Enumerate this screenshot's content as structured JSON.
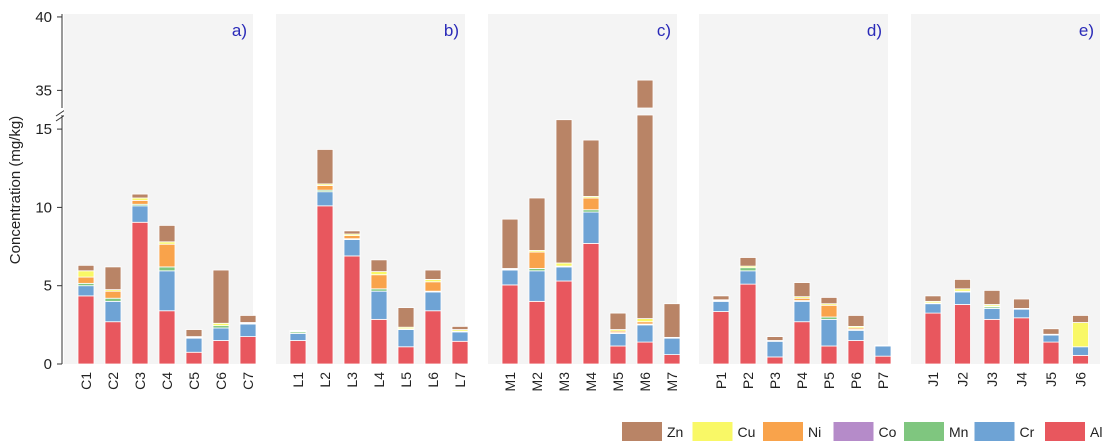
{
  "ylabel": "Concentration (mg/kg)",
  "legend": [
    {
      "name": "Zn",
      "color": "#b98466"
    },
    {
      "name": "Cu",
      "color": "#f9f866"
    },
    {
      "name": "Ni",
      "color": "#f9a34b"
    },
    {
      "name": "Co",
      "color": "#b58bc9"
    },
    {
      "name": "Mn",
      "color": "#7fc67f"
    },
    {
      "name": "Cr",
      "color": "#6ea3d5"
    },
    {
      "name": "Al",
      "color": "#e8575e"
    }
  ],
  "chart_data": [
    {
      "type": "bar",
      "stacked": true,
      "label": "a)",
      "yticks": [
        0,
        5,
        10,
        15,
        35,
        40
      ],
      "ylim_lower": [
        0,
        15.9
      ],
      "ylim_upper": [
        33.8,
        40.2
      ],
      "axis_break": true,
      "grid": false,
      "categories": [
        "C1",
        "C2",
        "C3",
        "C4",
        "C5",
        "C6",
        "C7"
      ],
      "series": [
        {
          "name": "Al",
          "values": [
            4.35,
            2.7,
            9.05,
            3.4,
            0.75,
            1.5,
            1.75
          ]
        },
        {
          "name": "Cr",
          "values": [
            0.65,
            1.3,
            1.05,
            2.55,
            0.9,
            0.8,
            0.8
          ]
        },
        {
          "name": "Mn",
          "values": [
            0.15,
            0.2,
            0.1,
            0.25,
            0.05,
            0.15,
            0.05
          ]
        },
        {
          "name": "Co",
          "values": [
            0,
            0,
            0,
            0,
            0,
            0,
            0
          ]
        },
        {
          "name": "Ni",
          "values": [
            0.4,
            0.45,
            0.25,
            1.45,
            0,
            0,
            0
          ]
        },
        {
          "name": "Cu",
          "values": [
            0.4,
            0.1,
            0.15,
            0.15,
            0.05,
            0.15,
            0.05
          ]
        },
        {
          "name": "Zn",
          "values": [
            0.35,
            1.45,
            0.25,
            1.05,
            0.45,
            3.4,
            0.45
          ]
        }
      ]
    },
    {
      "type": "bar",
      "stacked": true,
      "label": "b)",
      "categories": [
        "L1",
        "L2",
        "L3",
        "L4",
        "L5",
        "L6",
        "L7"
      ],
      "series": [
        {
          "name": "Al",
          "values": [
            1.5,
            10.1,
            6.9,
            2.85,
            1.1,
            3.4,
            1.45
          ]
        },
        {
          "name": "Cr",
          "values": [
            0.45,
            0.9,
            1.05,
            1.8,
            1.1,
            1.2,
            0.6
          ]
        },
        {
          "name": "Mn",
          "values": [
            0.1,
            0.1,
            0.05,
            0.15,
            0.05,
            0.05,
            0.05
          ]
        },
        {
          "name": "Co",
          "values": [
            0,
            0,
            0,
            0,
            0,
            0,
            0
          ]
        },
        {
          "name": "Ni",
          "values": [
            0,
            0.3,
            0.2,
            0.9,
            0,
            0.6,
            0
          ]
        },
        {
          "name": "Cu",
          "values": [
            0.05,
            0.1,
            0.1,
            0.2,
            0.1,
            0.15,
            0.1
          ]
        },
        {
          "name": "Zn",
          "values": [
            0.05,
            2.2,
            0.2,
            0.75,
            1.25,
            0.6,
            0.2
          ]
        }
      ]
    },
    {
      "type": "bar",
      "stacked": true,
      "label": "c)",
      "categories": [
        "M1",
        "M2",
        "M3",
        "M4",
        "M5",
        "M6",
        "M7"
      ],
      "series": [
        {
          "name": "Al",
          "values": [
            5.05,
            4.0,
            5.3,
            7.7,
            1.15,
            1.4,
            0.6
          ]
        },
        {
          "name": "Cr",
          "values": [
            0.95,
            1.95,
            0.9,
            2.0,
            0.8,
            1.1,
            1.05
          ]
        },
        {
          "name": "Mn",
          "values": [
            0.05,
            0.15,
            0.05,
            0.15,
            0.05,
            0.05,
            0.05
          ]
        },
        {
          "name": "Co",
          "values": [
            0,
            0,
            0,
            0,
            0,
            0,
            0
          ]
        },
        {
          "name": "Ni",
          "values": [
            0,
            1.05,
            0,
            0.75,
            0.1,
            0.15,
            0
          ]
        },
        {
          "name": "Cu",
          "values": [
            0.05,
            0.1,
            0.2,
            0.1,
            0.1,
            0.2,
            0
          ]
        },
        {
          "name": "Zn",
          "values": [
            3.15,
            3.35,
            9.15,
            3.6,
            1.05,
            32.8,
            2.15
          ]
        }
      ]
    },
    {
      "type": "bar",
      "stacked": true,
      "label": "d)",
      "categories": [
        "P1",
        "P2",
        "P3",
        "P4",
        "P5",
        "P6",
        "P7"
      ],
      "series": [
        {
          "name": "Al",
          "values": [
            3.35,
            5.1,
            0.45,
            2.7,
            1.15,
            1.5,
            0.5
          ]
        },
        {
          "name": "Cr",
          "values": [
            0.65,
            0.85,
            1.0,
            1.3,
            1.7,
            0.65,
            0.65
          ]
        },
        {
          "name": "Mn",
          "values": [
            0.05,
            0.2,
            0.05,
            0.05,
            0.15,
            0.05,
            0
          ]
        },
        {
          "name": "Co",
          "values": [
            0,
            0,
            0,
            0,
            0,
            0,
            0
          ]
        },
        {
          "name": "Ni",
          "values": [
            0,
            0,
            0,
            0.15,
            0.75,
            0.1,
            0
          ]
        },
        {
          "name": "Cu",
          "values": [
            0.05,
            0.1,
            0,
            0.1,
            0.1,
            0.1,
            0
          ]
        },
        {
          "name": "Zn",
          "values": [
            0.25,
            0.55,
            0.25,
            0.9,
            0.4,
            0.7,
            0.05
          ]
        }
      ]
    },
    {
      "type": "bar",
      "stacked": true,
      "label": "e)",
      "categories": [
        "J1",
        "J2",
        "J3",
        "J4",
        "J5",
        "J6"
      ],
      "series": [
        {
          "name": "Al",
          "values": [
            3.25,
            3.8,
            2.85,
            2.95,
            1.4,
            0.55
          ]
        },
        {
          "name": "Cr",
          "values": [
            0.6,
            0.8,
            0.7,
            0.55,
            0.45,
            0.55
          ]
        },
        {
          "name": "Mn",
          "values": [
            0.05,
            0.05,
            0.1,
            0,
            0,
            0
          ]
        },
        {
          "name": "Co",
          "values": [
            0,
            0,
            0,
            0,
            0,
            0
          ]
        },
        {
          "name": "Ni",
          "values": [
            0,
            0,
            0.05,
            0,
            0,
            0
          ]
        },
        {
          "name": "Cu",
          "values": [
            0.1,
            0.15,
            0.1,
            0.05,
            0.05,
            1.55
          ]
        },
        {
          "name": "Zn",
          "values": [
            0.35,
            0.6,
            0.9,
            0.6,
            0.35,
            0.45
          ]
        }
      ]
    }
  ]
}
